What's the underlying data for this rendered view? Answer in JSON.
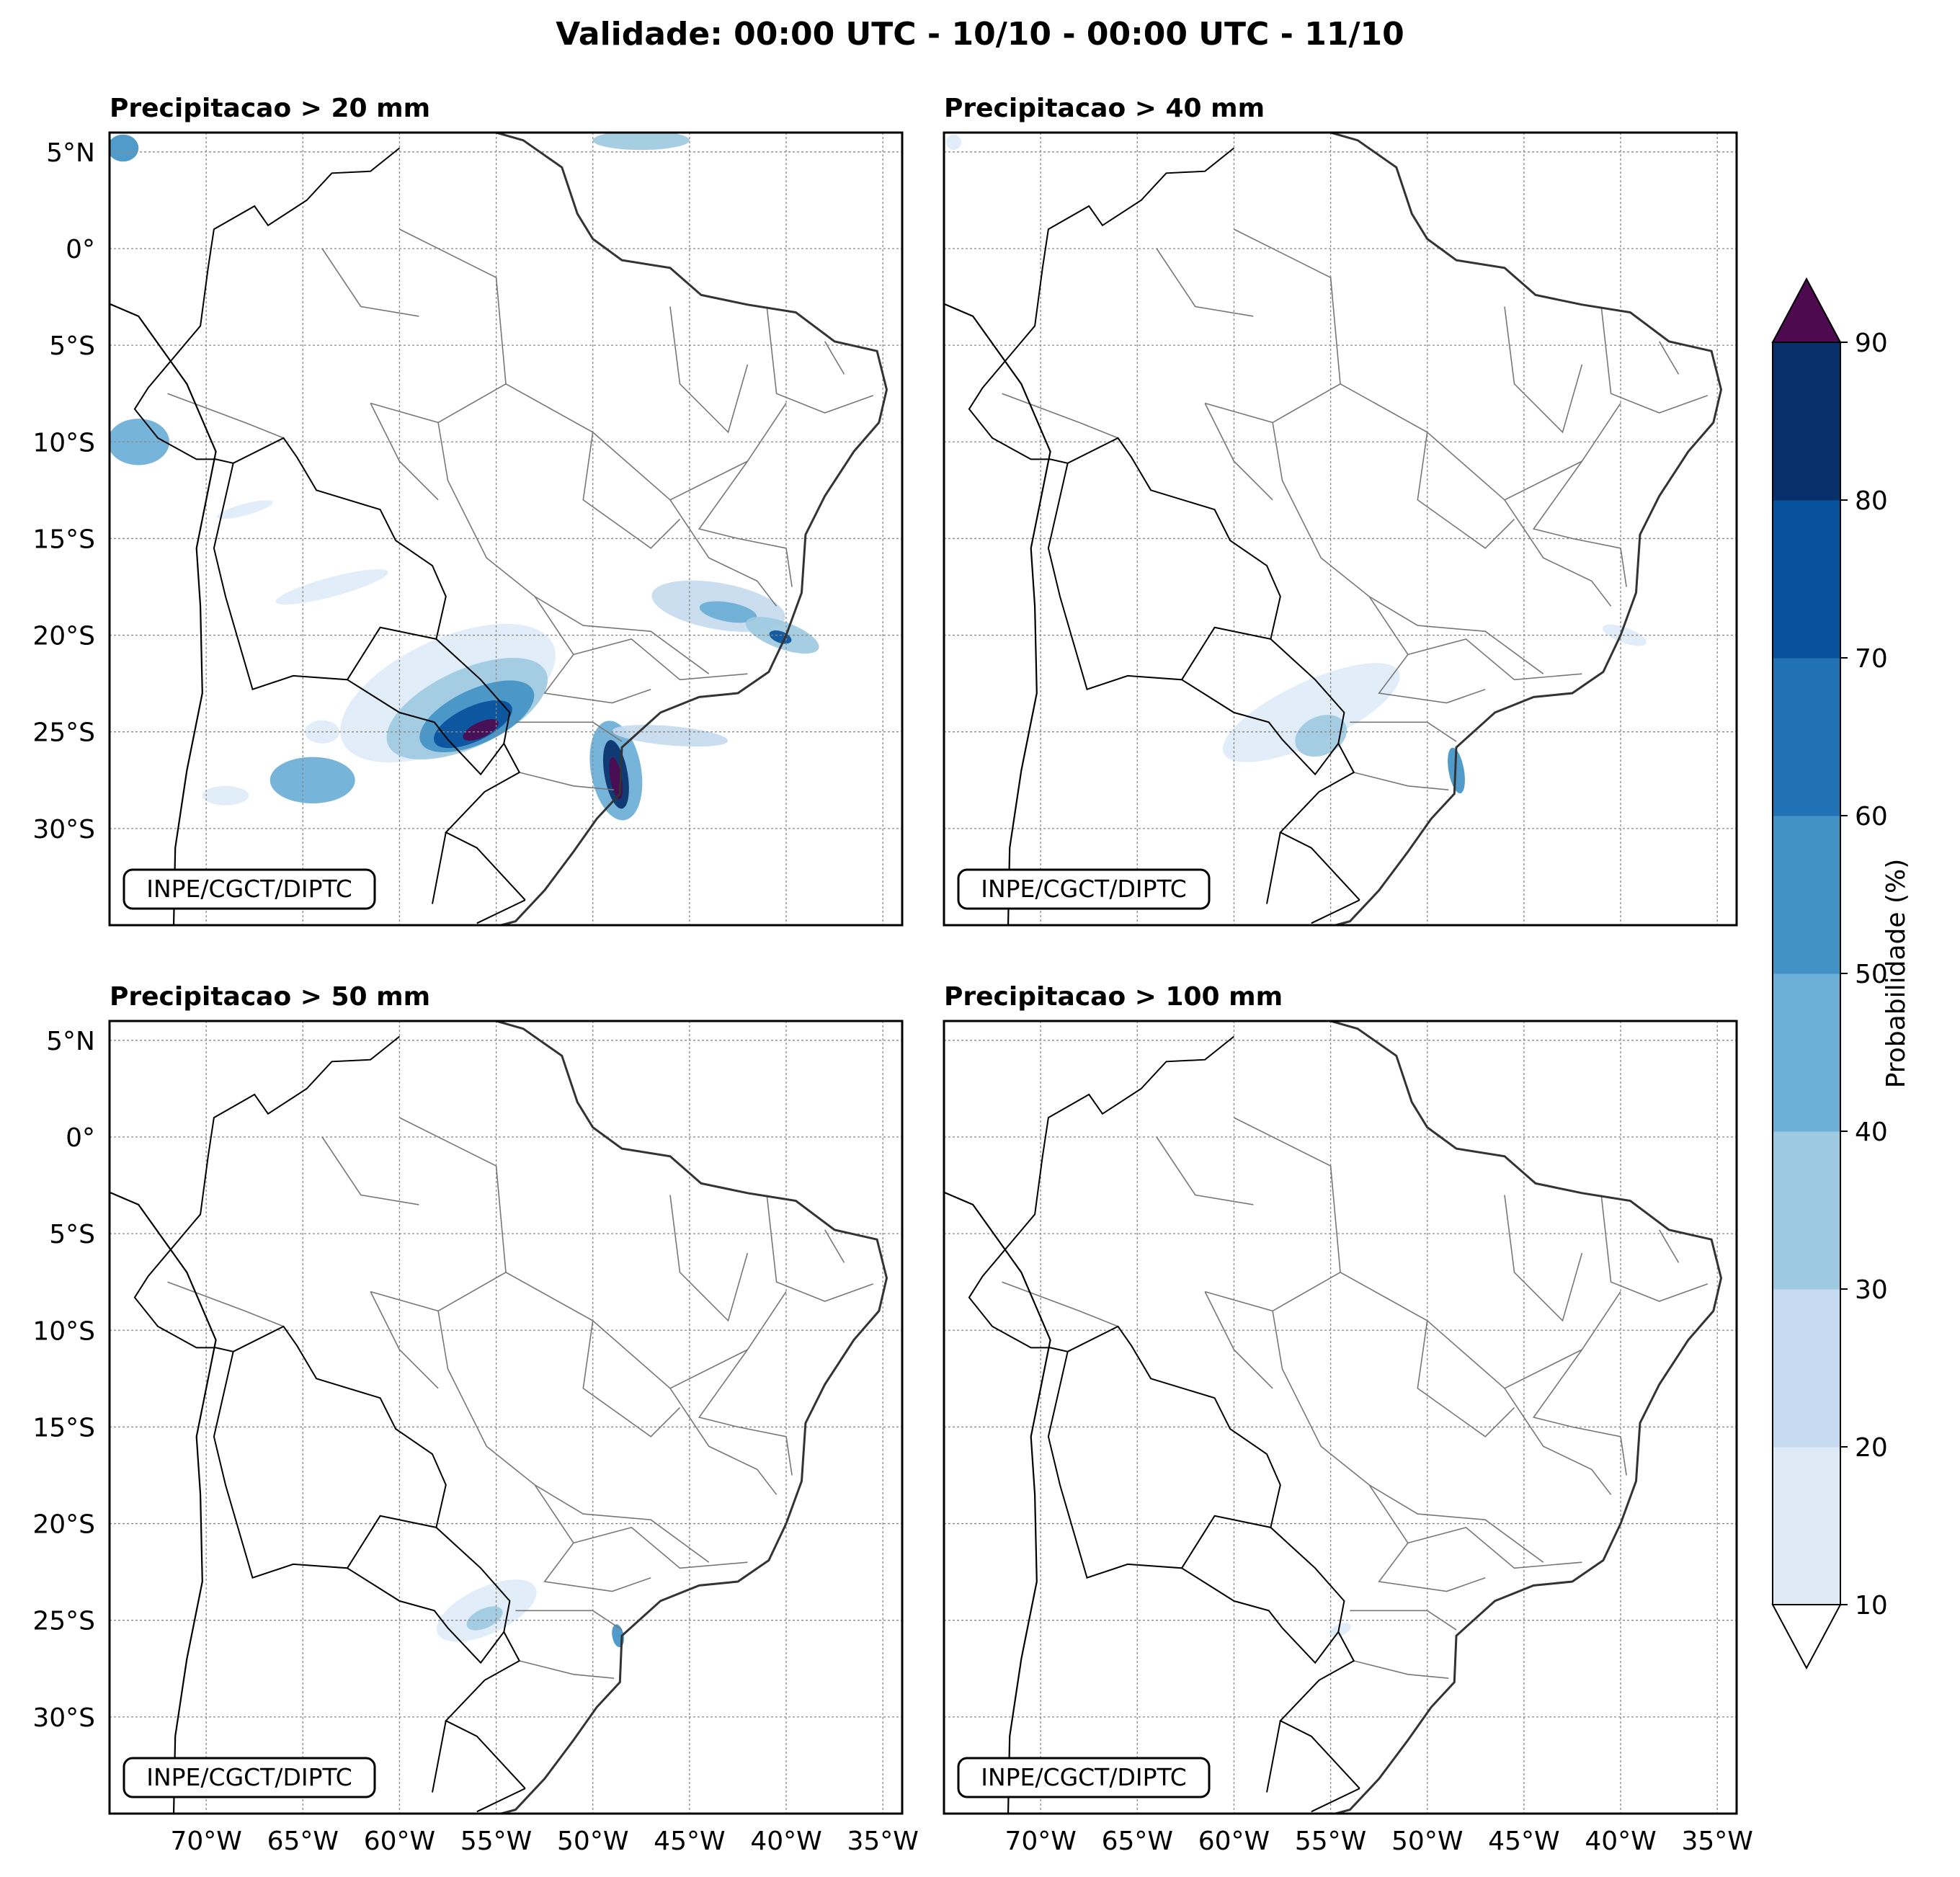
{
  "title": "Validade: 00:00 UTC - 10/10 - 00:00 UTC - 11/10",
  "credit": "INPE/CGCT/DIPTC",
  "panels": [
    {
      "title": "Precipitacao > 20 mm"
    },
    {
      "title": "Precipitacao > 40 mm"
    },
    {
      "title": "Precipitacao > 50 mm"
    },
    {
      "title": "Precipitacao > 100 mm"
    }
  ],
  "map_extent": {
    "lon_min": -75.0,
    "lon_max": -34.0,
    "lat_min": -35.0,
    "lat_max": 6.0
  },
  "lon_ticks": [
    {
      "value": -70,
      "label": "70°W"
    },
    {
      "value": -65,
      "label": "65°W"
    },
    {
      "value": -60,
      "label": "60°W"
    },
    {
      "value": -55,
      "label": "55°W"
    },
    {
      "value": -50,
      "label": "50°W"
    },
    {
      "value": -45,
      "label": "45°W"
    },
    {
      "value": -40,
      "label": "40°W"
    },
    {
      "value": -35,
      "label": "35°W"
    }
  ],
  "lat_ticks": [
    {
      "value": 5,
      "label": "5°N"
    },
    {
      "value": 0,
      "label": "0°"
    },
    {
      "value": -5,
      "label": "5°S"
    },
    {
      "value": -10,
      "label": "10°S"
    },
    {
      "value": -15,
      "label": "15°S"
    },
    {
      "value": -20,
      "label": "20°S"
    },
    {
      "value": -25,
      "label": "25°S"
    },
    {
      "value": -30,
      "label": "30°S"
    }
  ],
  "colorbar": {
    "label": "Probabilidade (%)",
    "levels": [
      10,
      20,
      30,
      40,
      50,
      60,
      70,
      80,
      90
    ],
    "tick_labels": [
      "10",
      "20",
      "30",
      "40",
      "50",
      "60",
      "70",
      "80",
      "90"
    ],
    "colors": [
      "#deebf7",
      "#c6dbef",
      "#9ecae1",
      "#6baed6",
      "#4292c6",
      "#2171b5",
      "#08519c",
      "#08306b"
    ],
    "over_color": "#4d0a4f",
    "under_color": "#ffffff"
  },
  "precip_areas": [
    [
      {
        "lon": -57.5,
        "lat": -23.0,
        "rx": 6.0,
        "ry": 2.8,
        "rot": 25,
        "p": 15
      },
      {
        "lon": -56.5,
        "lat": -23.8,
        "rx": 4.5,
        "ry": 2.0,
        "rot": 25,
        "p": 35
      },
      {
        "lon": -56.0,
        "lat": -24.2,
        "rx": 3.2,
        "ry": 1.4,
        "rot": 25,
        "p": 55
      },
      {
        "lon": -56.2,
        "lat": -24.6,
        "rx": 2.2,
        "ry": 0.9,
        "rot": 25,
        "p": 75
      },
      {
        "lon": -55.8,
        "lat": -24.9,
        "rx": 1.0,
        "ry": 0.4,
        "rot": 25,
        "p": 92
      },
      {
        "lon": -48.8,
        "lat": -27.0,
        "rx": 1.3,
        "ry": 2.6,
        "rot": 10,
        "p": 40
      },
      {
        "lon": -48.8,
        "lat": -27.2,
        "rx": 0.6,
        "ry": 1.8,
        "rot": 10,
        "p": 85
      },
      {
        "lon": -48.8,
        "lat": -27.4,
        "rx": 0.3,
        "ry": 1.1,
        "rot": 10,
        "p": 92
      },
      {
        "lon": -46.0,
        "lat": -25.2,
        "rx": 3.0,
        "ry": 0.5,
        "rot": -5,
        "p": 20
      },
      {
        "lon": -64.5,
        "lat": -27.5,
        "rx": 2.2,
        "ry": 1.2,
        "rot": 0,
        "p": 45
      },
      {
        "lon": -69.0,
        "lat": -28.3,
        "rx": 1.2,
        "ry": 0.5,
        "rot": 0,
        "p": 18
      },
      {
        "lon": -64.0,
        "lat": -25.0,
        "rx": 0.9,
        "ry": 0.6,
        "rot": 0,
        "p": 15
      },
      {
        "lon": -43.5,
        "lat": -18.5,
        "rx": 3.5,
        "ry": 1.2,
        "rot": -10,
        "p": 22
      },
      {
        "lon": -43.0,
        "lat": -18.8,
        "rx": 1.5,
        "ry": 0.5,
        "rot": -10,
        "p": 45
      },
      {
        "lon": -40.2,
        "lat": -20.0,
        "rx": 2.0,
        "ry": 0.7,
        "rot": -20,
        "p": 35
      },
      {
        "lon": -40.3,
        "lat": -20.1,
        "rx": 0.6,
        "ry": 0.3,
        "rot": -20,
        "p": 75
      },
      {
        "lon": -63.5,
        "lat": -17.5,
        "rx": 3.0,
        "ry": 0.5,
        "rot": 15,
        "p": 15
      },
      {
        "lon": -73.5,
        "lat": -10.0,
        "rx": 1.6,
        "ry": 1.2,
        "rot": 0,
        "p": 40
      },
      {
        "lon": -74.3,
        "lat": 5.2,
        "rx": 0.8,
        "ry": 0.7,
        "rot": 0,
        "p": 55
      },
      {
        "lon": -47.5,
        "lat": 5.6,
        "rx": 2.5,
        "ry": 0.5,
        "rot": 0,
        "p": 35
      },
      {
        "lon": -68.0,
        "lat": -13.5,
        "rx": 1.5,
        "ry": 0.3,
        "rot": 15,
        "p": 15
      }
    ],
    [
      {
        "lon": -56.0,
        "lat": -24.0,
        "rx": 5.0,
        "ry": 1.6,
        "rot": 25,
        "p": 15
      },
      {
        "lon": -55.5,
        "lat": -25.2,
        "rx": 1.4,
        "ry": 1.0,
        "rot": 25,
        "p": 35
      },
      {
        "lon": -48.5,
        "lat": -27.0,
        "rx": 0.4,
        "ry": 1.2,
        "rot": 10,
        "p": 55
      },
      {
        "lon": -39.8,
        "lat": -20.0,
        "rx": 1.2,
        "ry": 0.4,
        "rot": -20,
        "p": 15
      },
      {
        "lon": -74.5,
        "lat": 5.5,
        "rx": 0.4,
        "ry": 0.4,
        "rot": 0,
        "p": 15
      }
    ],
    [
      {
        "lon": -55.5,
        "lat": -24.5,
        "rx": 2.8,
        "ry": 1.2,
        "rot": 25,
        "p": 15
      },
      {
        "lon": -55.6,
        "lat": -24.9,
        "rx": 1.0,
        "ry": 0.5,
        "rot": 25,
        "p": 35
      },
      {
        "lon": -48.7,
        "lat": -25.8,
        "rx": 0.3,
        "ry": 0.6,
        "rot": 10,
        "p": 55
      }
    ],
    [
      {
        "lon": -54.5,
        "lat": -25.5,
        "rx": 0.6,
        "ry": 0.3,
        "rot": 25,
        "p": 15
      }
    ]
  ]
}
